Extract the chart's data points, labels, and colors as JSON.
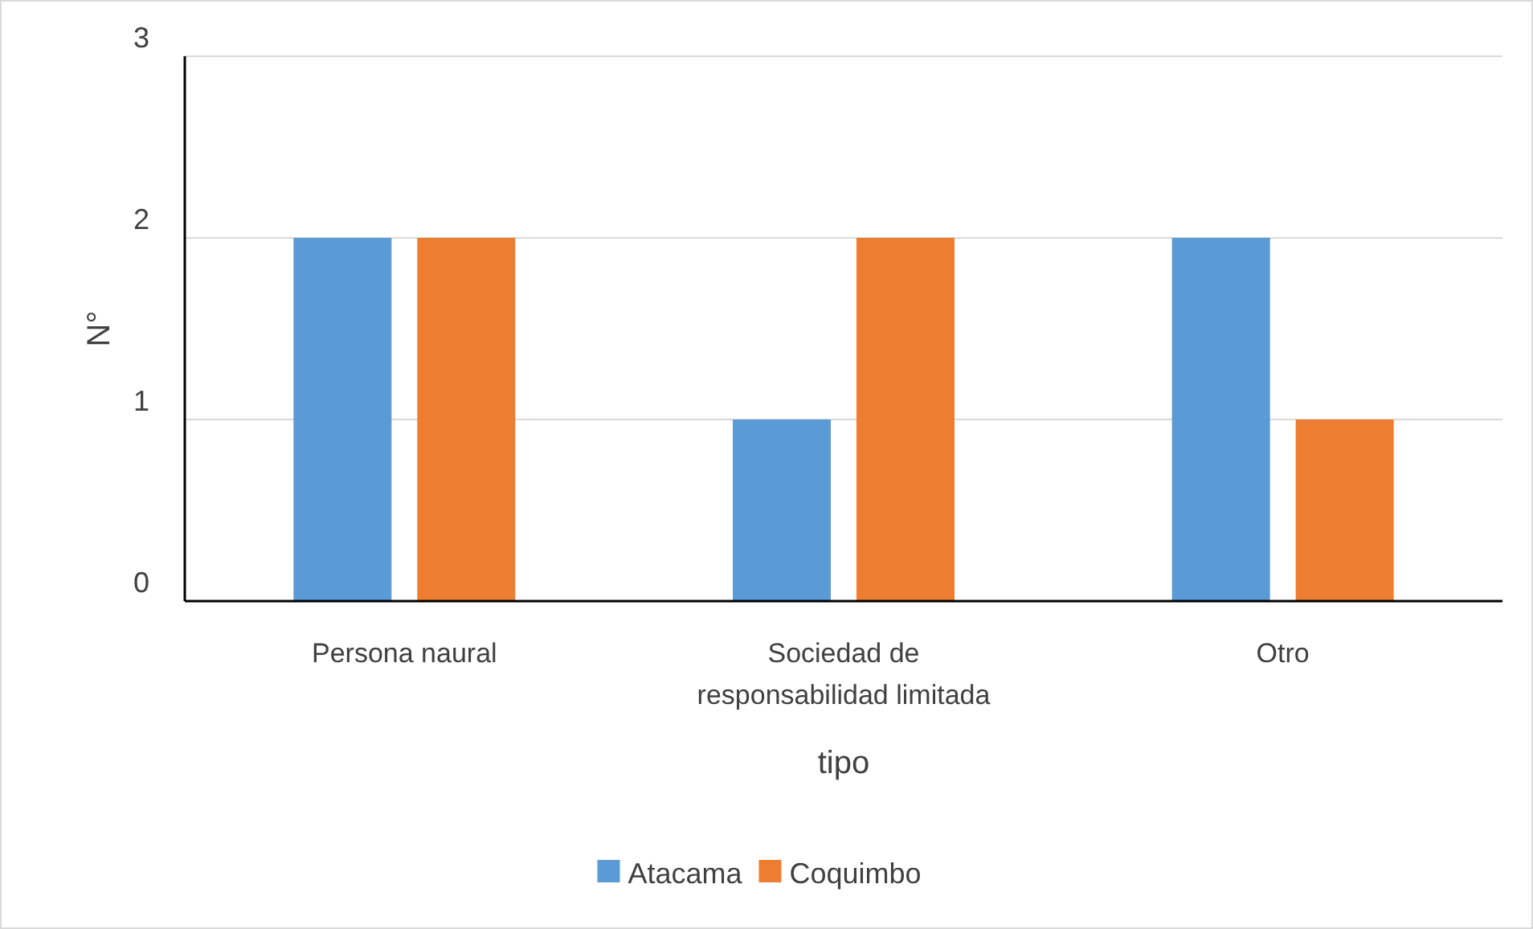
{
  "chart_data": {
    "type": "bar",
    "xlabel": "tipo",
    "ylabel": "N°",
    "categories": [
      "Persona naural",
      "Sociedad de responsabilidad limitada",
      "Otro"
    ],
    "series": [
      {
        "name": "Atacama",
        "color": "#5b9bd5",
        "values": [
          2,
          1,
          2
        ]
      },
      {
        "name": "Coquimbo",
        "color": "#ed7d31",
        "values": [
          2,
          2,
          1
        ]
      }
    ],
    "ylim": [
      0,
      3
    ],
    "yticks": [
      0,
      1,
      2,
      3
    ],
    "grid": "y",
    "legend": "bottom"
  }
}
